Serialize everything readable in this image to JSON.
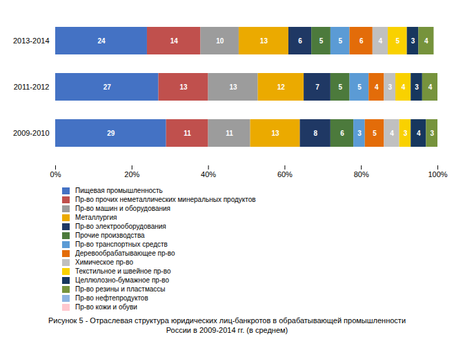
{
  "chart_data": {
    "type": "bar",
    "orientation": "horizontal",
    "stacked": true,
    "data_labels": true,
    "grid": false,
    "legend": "bottom",
    "caption": [
      "Рисунок 5 - Отраслевая структура юридических лиц-банкротов в обрабатывающей промышленности",
      "России в 2009-2014 гг. (в среднем)"
    ],
    "categories": [
      "2009-2010",
      "2011-2012",
      "2013-2014"
    ],
    "series": [
      {
        "name": "Пищевая промышленность",
        "color": "#4472C4",
        "values": [
          29,
          27,
          24
        ]
      },
      {
        "name": "Пр-во прочих неметаллических минеральных продуктов",
        "color": "#C0504D",
        "values": [
          11,
          13,
          14
        ]
      },
      {
        "name": "Пр-во машин и оборудования",
        "color": "#9C9C9C",
        "values": [
          11,
          13,
          10
        ]
      },
      {
        "name": "Металлургия",
        "color": "#EBAA00",
        "values": [
          13,
          12,
          13
        ]
      },
      {
        "name": "Пр-во электрооборудования",
        "color": "#1F3864",
        "values": [
          8,
          7,
          6
        ]
      },
      {
        "name": "Прочие производства",
        "color": "#4C7A3C",
        "values": [
          6,
          5,
          5
        ]
      },
      {
        "name": "Пр-во транспортных средств",
        "color": "#5B9BD5",
        "values": [
          3,
          5,
          5
        ]
      },
      {
        "name": "Деревообрабатывающее пр-во",
        "color": "#E36C09",
        "values": [
          5,
          4,
          6
        ]
      },
      {
        "name": "Химическое пр-во",
        "color": "#C0C0C0",
        "values": [
          4,
          3,
          4
        ]
      },
      {
        "name": "Текстильное и швейное пр-во",
        "color": "#F9D100",
        "values": [
          3,
          4,
          5
        ]
      },
      {
        "name": "Целлюлозно-бумажное пр-во",
        "color": "#17375E",
        "values": [
          4,
          3,
          3
        ]
      },
      {
        "name": "Пр-во резины и пластмассы",
        "color": "#76933C",
        "values": [
          3,
          4,
          4
        ]
      },
      {
        "name": "Пр-во нефтепродуктов",
        "color": "#8DB4E2",
        "values": [
          0,
          0,
          0
        ]
      },
      {
        "name": "Пр-во кожи и обуви",
        "color": "#FFC7CE",
        "values": [
          0,
          0,
          0
        ]
      }
    ],
    "xlim": [
      0,
      100
    ],
    "xticks": [
      {
        "value": 0,
        "label": "0%"
      },
      {
        "value": 20,
        "label": "20%"
      },
      {
        "value": 40,
        "label": "40%"
      },
      {
        "value": 60,
        "label": "60%"
      },
      {
        "value": 80,
        "label": "80%"
      },
      {
        "value": 100,
        "label": "100%"
      }
    ]
  }
}
